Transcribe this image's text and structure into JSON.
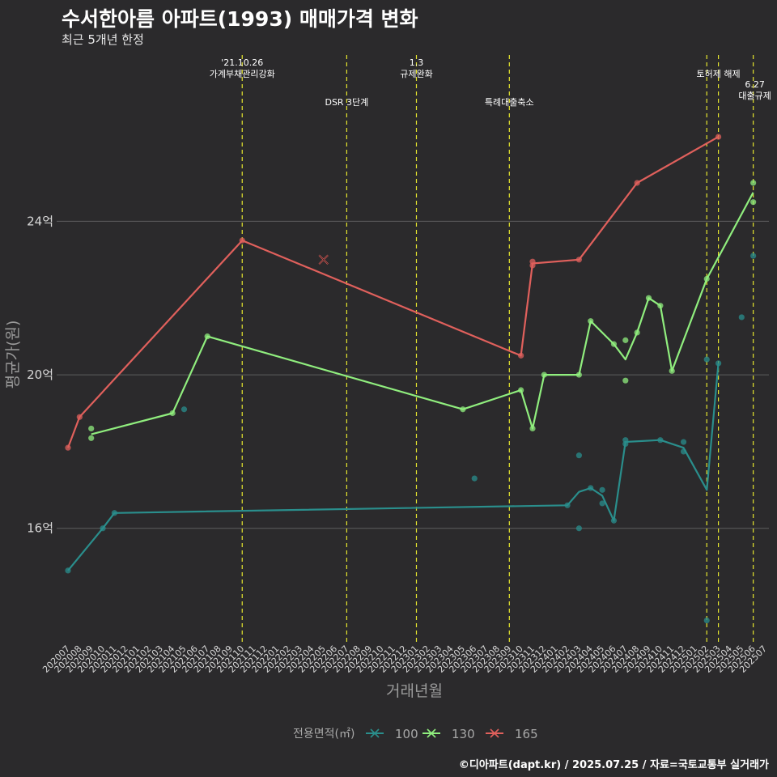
{
  "title": "수서한아름 아파트(1993) 매매가격 변화",
  "subtitle": "최근 5개년 한정",
  "caption": "©디아파트(dapt.kr) / 2025.07.25 / 자료=국토교통부 실거래가",
  "chart_data": {
    "type": "line",
    "xlabel": "거래년월",
    "ylabel": "평균가(원)",
    "y_unit": "억",
    "ylim": [
      13,
      28.5
    ],
    "y_ticks": [
      16,
      20,
      24
    ],
    "y_tick_labels": [
      "16억",
      "20억",
      "24억"
    ],
    "grid": true,
    "legend_title": "전용면적(㎡)",
    "legend_position": "bottom",
    "x_categories": [
      "202007",
      "202008",
      "202009",
      "202010",
      "202011",
      "202012",
      "202101",
      "202102",
      "202103",
      "202104",
      "202105",
      "202106",
      "202107",
      "202108",
      "202109",
      "202110",
      "202111",
      "202112",
      "202201",
      "202202",
      "202203",
      "202204",
      "202205",
      "202206",
      "202207",
      "202208",
      "202209",
      "202210",
      "202211",
      "202212",
      "202301",
      "202302",
      "202303",
      "202304",
      "202305",
      "202306",
      "202307",
      "202308",
      "202309",
      "202310",
      "202311",
      "202312",
      "202401",
      "202402",
      "202403",
      "202404",
      "202405",
      "202406",
      "202407",
      "202408",
      "202409",
      "202410",
      "202411",
      "202412",
      "202501",
      "202502",
      "202503",
      "202504",
      "202505",
      "202506",
      "202507"
    ],
    "series": [
      {
        "name": "100",
        "color": "#2a8e8c",
        "line": [
          [
            "202007",
            14.9
          ],
          [
            "202010",
            16.0
          ],
          [
            "202011",
            16.4
          ],
          [
            "202402",
            16.6
          ],
          [
            "202403",
            16.95
          ],
          [
            "202404",
            17.05
          ],
          [
            "202405",
            16.85
          ],
          [
            "202406",
            16.2
          ],
          [
            "202407",
            18.25
          ],
          [
            "202410",
            18.3
          ],
          [
            "202412",
            18.1
          ],
          [
            "202502",
            17.0
          ],
          [
            "202503",
            20.3
          ],
          [
            "202505",
            null
          ],
          [
            "202506",
            23.1
          ]
        ],
        "points": [
          [
            "202007",
            14.9
          ],
          [
            "202010",
            16.0
          ],
          [
            "202011",
            16.4
          ],
          [
            "202105",
            19.1
          ],
          [
            "202306",
            17.3
          ],
          [
            "202402",
            16.6
          ],
          [
            "202403",
            17.9
          ],
          [
            "202403",
            16.0
          ],
          [
            "202404",
            17.05
          ],
          [
            "202405",
            17.0
          ],
          [
            "202405",
            16.65
          ],
          [
            "202406",
            16.2
          ],
          [
            "202407",
            18.3
          ],
          [
            "202407",
            18.2
          ],
          [
            "202410",
            18.3
          ],
          [
            "202412",
            18.25
          ],
          [
            "202412",
            18.0
          ],
          [
            "202502",
            20.4
          ],
          [
            "202502",
            13.6
          ],
          [
            "202503",
            20.3
          ],
          [
            "202505",
            21.5
          ],
          [
            "202506",
            23.1
          ]
        ]
      },
      {
        "name": "130",
        "color": "#90ee7e",
        "line": [
          [
            "202009",
            18.45
          ],
          [
            "202104",
            19.0
          ],
          [
            "202107",
            21.0
          ],
          [
            "202305",
            19.1
          ],
          [
            "202310",
            19.6
          ],
          [
            "202311",
            18.6
          ],
          [
            "202312",
            20.0
          ],
          [
            "202403",
            20.0
          ],
          [
            "202404",
            21.4
          ],
          [
            "202406",
            20.8
          ],
          [
            "202407",
            20.4
          ],
          [
            "202408",
            21.1
          ],
          [
            "202409",
            22.0
          ],
          [
            "202410",
            21.8
          ],
          [
            "202411",
            20.1
          ],
          [
            "202502",
            22.5
          ],
          [
            "202506",
            24.75
          ]
        ],
        "points": [
          [
            "202009",
            18.6
          ],
          [
            "202009",
            18.35
          ],
          [
            "202104",
            19.0
          ],
          [
            "202107",
            21.0
          ],
          [
            "202305",
            19.1
          ],
          [
            "202310",
            19.6
          ],
          [
            "202311",
            18.6
          ],
          [
            "202312",
            20.0
          ],
          [
            "202403",
            20.0
          ],
          [
            "202404",
            21.4
          ],
          [
            "202406",
            20.8
          ],
          [
            "202407",
            20.9
          ],
          [
            "202407",
            19.85
          ],
          [
            "202408",
            21.1
          ],
          [
            "202409",
            22.0
          ],
          [
            "202410",
            21.8
          ],
          [
            "202411",
            20.1
          ],
          [
            "202502",
            22.5
          ],
          [
            "202506",
            25.0
          ],
          [
            "202506",
            24.5
          ]
        ]
      },
      {
        "name": "165",
        "color": "#e0605c",
        "line": [
          [
            "202007",
            18.1
          ],
          [
            "202008",
            18.9
          ],
          [
            "202110",
            23.5
          ],
          [
            "202310",
            20.5
          ],
          [
            "202311",
            22.9
          ],
          [
            "202403",
            23.0
          ],
          [
            "202408",
            25.0
          ],
          [
            "202503",
            26.2
          ]
        ],
        "points": [
          [
            "202007",
            18.1
          ],
          [
            "202008",
            18.9
          ],
          [
            "202110",
            23.5
          ],
          [
            "202310",
            20.5
          ],
          [
            "202311",
            22.95
          ],
          [
            "202311",
            22.85
          ],
          [
            "202403",
            23.0
          ],
          [
            "202408",
            25.0
          ],
          [
            "202503",
            26.2
          ]
        ],
        "cross": [
          [
            "202205",
            23.0
          ]
        ]
      }
    ],
    "events": [
      {
        "x": "202110",
        "label": "'21.10.26\n가계부채관리강화",
        "row": 0
      },
      {
        "x": "202207",
        "label": "DSR 3단계",
        "row": 1
      },
      {
        "x": "202301",
        "label": "1.3\n규제완화",
        "row": 0
      },
      {
        "x": "202309",
        "label": "특례대출축소",
        "row": 1
      },
      {
        "x": "202502",
        "label": "",
        "row": 0
      },
      {
        "x": "202503",
        "label": "토허제 해제",
        "row": 0
      },
      {
        "x": "202506",
        "label": "6.27\n대출규제",
        "row": 2
      }
    ]
  }
}
